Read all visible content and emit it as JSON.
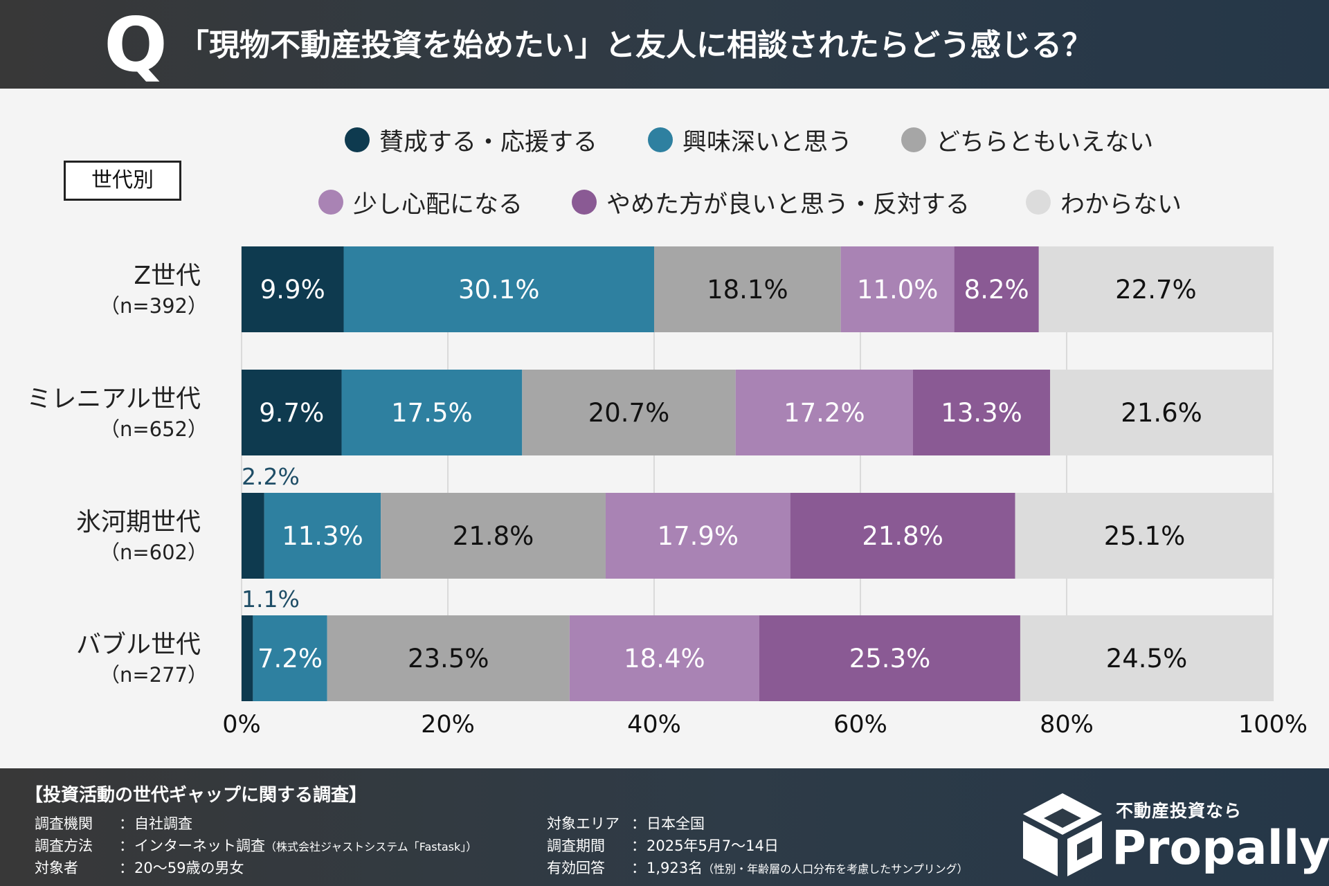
{
  "header": {
    "q_mark": "Q",
    "title": "「現物不動産投資を始めたい」と友人に相談されたらどう感じる？"
  },
  "group_label": "世代別",
  "chart_data": {
    "type": "bar",
    "orientation": "horizontal",
    "stacked": true,
    "title": "「現物不動産投資を始めたい」と友人に相談されたらどう感じる？",
    "categories": [
      "Z世代",
      "ミレニアル世代",
      "氷河期世代",
      "バブル世代"
    ],
    "category_n": [
      "（n=392）",
      "（n=652）",
      "（n=602）",
      "（n=277）"
    ],
    "series": [
      {
        "name": "賛成する・応援する",
        "color": "#0e3a4f",
        "values": [
          9.9,
          9.7,
          2.2,
          1.1
        ],
        "labels": [
          "9.9%",
          "9.7%",
          "2.2%",
          "1.1%"
        ]
      },
      {
        "name": "興味深いと思う",
        "color": "#2e80a0",
        "values": [
          30.1,
          17.5,
          11.3,
          7.2
        ],
        "labels": [
          "30.1%",
          "17.5%",
          "11.3%",
          "7.2%"
        ]
      },
      {
        "name": "どちらともいえない",
        "color": "#a6a6a6",
        "values": [
          18.1,
          20.7,
          21.8,
          23.5
        ],
        "labels": [
          "18.1%",
          "20.7%",
          "21.8%",
          "23.5%"
        ]
      },
      {
        "name": "少し心配になる",
        "color": "#a983b4",
        "values": [
          11.0,
          17.2,
          17.9,
          18.4
        ],
        "labels": [
          "11.0%",
          "17.2%",
          "17.9%",
          "18.4%"
        ]
      },
      {
        "name": "やめた方が良いと思う・反対する",
        "color": "#8a5a94",
        "values": [
          8.2,
          13.3,
          21.8,
          25.3
        ],
        "labels": [
          "8.2%",
          "13.3%",
          "21.8%",
          "25.3%"
        ]
      },
      {
        "name": "わからない",
        "color": "#dcdcdc",
        "values": [
          22.7,
          21.6,
          25.1,
          24.5
        ],
        "labels": [
          "22.7%",
          "21.6%",
          "25.1%",
          "24.5%"
        ]
      }
    ],
    "label_colors": [
      "#ffffff",
      "#ffffff",
      "#111111",
      "#ffffff",
      "#ffffff",
      "#111111"
    ],
    "outside_label_color": "#1e4d66",
    "xlim": [
      0,
      100
    ],
    "xticks": [
      "0%",
      "20%",
      "40%",
      "60%",
      "80%",
      "100%"
    ],
    "grid": true,
    "legend": "top"
  },
  "footer": {
    "title": "【投資活動の世代ギャップに関する調査】",
    "left_rows": [
      {
        "label": "調査機関",
        "sep": "：",
        "value": "自社調査",
        "note": ""
      },
      {
        "label": "調査方法",
        "sep": "：",
        "value": "インターネット調査",
        "note": "（株式会社ジャストシステム「Fastask」）"
      },
      {
        "label": "対象者",
        "sep": "：",
        "value": "20〜59歳の男女",
        "note": ""
      }
    ],
    "right_rows": [
      {
        "label": "対象エリア",
        "sep": "：",
        "value": "日本全国",
        "note": ""
      },
      {
        "label": "調査期間",
        "sep": "：",
        "value": "2025年5月7〜14日",
        "note": ""
      },
      {
        "label": "有効回答",
        "sep": "：",
        "value": "1,923名",
        "note": "（性別・年齢層の人口分布を考慮したサンプリング）"
      }
    ]
  },
  "brand": {
    "tagline": "不動産投資なら",
    "name": "Propally",
    "icon": "box-logo-icon"
  }
}
